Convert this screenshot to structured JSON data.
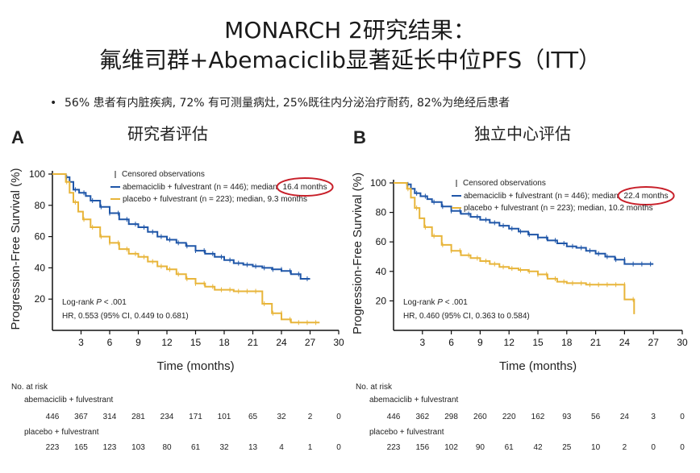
{
  "header": {
    "title_line1": "MONARCH 2研究结果：",
    "title_line2": "氟维司群+Abemaciclib显著延长中位PFS（ITT）",
    "bullet": "56% 患者有内脏疾病, 72% 有可测量病灶, 25%既往内分泌治疗耐药, 82%为绝经后患者"
  },
  "colors": {
    "abemaciclib": "#1f56a8",
    "placebo": "#e8b53a",
    "highlight": "#c8202a"
  },
  "chart_data": [
    {
      "type": "line",
      "panel": "A",
      "subtitle": "研究者评估",
      "xlabel": "Time (months)",
      "ylabel": "Progression-Free Survival (%)",
      "xlim": [
        0,
        30
      ],
      "ylim": [
        0,
        100
      ],
      "xticks": [
        "3",
        "6",
        "9",
        "12",
        "15",
        "18",
        "21",
        "24",
        "27",
        "30"
      ],
      "yticks": [
        "20",
        "40",
        "60",
        "80",
        "100"
      ],
      "legend": {
        "censored": "Censored observations",
        "abem": "abemaciclib + fulvestrant (n = 446); median,",
        "abem_median": "16.4 months",
        "placebo": "placebo + fulvestrant (n = 223); median, 9.3 months"
      },
      "stats": {
        "logrank_prefix": "Log-rank ",
        "logrank_p": "P",
        "logrank_suffix": " < .001",
        "hr": "HR, 0.553 (95% CI, 0.449 to 0.681)"
      },
      "series": [
        {
          "name": "abemaciclib + fulvestrant",
          "x": [
            0,
            1.0,
            1.4,
            1.8,
            2.2,
            2.8,
            3.5,
            4,
            5,
            6,
            7,
            8,
            9,
            10,
            11,
            12,
            13,
            14,
            15,
            16,
            17,
            18,
            19,
            20,
            21,
            22,
            23,
            24,
            25,
            26,
            27
          ],
          "y": [
            100,
            100,
            98,
            95,
            90,
            88,
            86,
            83,
            79,
            75,
            71,
            68,
            66,
            63,
            60,
            58,
            56,
            54,
            51,
            49,
            47,
            45,
            43,
            42,
            41,
            40,
            39,
            38,
            36,
            33,
            33
          ]
        },
        {
          "name": "placebo + fulvestrant",
          "x": [
            0,
            1.0,
            1.4,
            1.8,
            2.2,
            2.7,
            3.2,
            4,
            5,
            6,
            7,
            8,
            9,
            10,
            11,
            12,
            13,
            14,
            15,
            16,
            17,
            18,
            19,
            20,
            21,
            22,
            23,
            24,
            25,
            26,
            27,
            28
          ],
          "y": [
            100,
            100,
            95,
            88,
            82,
            76,
            71,
            66,
            60,
            56,
            52,
            49,
            47,
            44,
            41,
            39,
            36,
            33,
            30,
            28,
            26,
            26,
            25,
            25,
            25,
            17,
            11,
            7,
            5,
            5,
            5,
            5
          ]
        }
      ],
      "risk": {
        "label": "No. at risk",
        "abem_label": "abemaciclib + fulvestrant",
        "abem_values": [
          "446",
          "367",
          "314",
          "281",
          "234",
          "171",
          "101",
          "65",
          "32",
          "2",
          "0"
        ],
        "placebo_label": "placebo + fulvestrant",
        "placebo_values": [
          "223",
          "165",
          "123",
          "103",
          "80",
          "61",
          "32",
          "13",
          "4",
          "1",
          "0"
        ]
      }
    },
    {
      "type": "line",
      "panel": "B",
      "subtitle": "独立中心评估",
      "xlabel": "Time (months)",
      "ylabel": "Progression-Free Survival (%)",
      "xlim": [
        0,
        30
      ],
      "ylim": [
        0,
        100
      ],
      "xticks": [
        "3",
        "6",
        "9",
        "12",
        "15",
        "18",
        "21",
        "24",
        "27",
        "30"
      ],
      "yticks": [
        "20",
        "40",
        "60",
        "80",
        "100"
      ],
      "legend": {
        "censored": "Censored observations",
        "abem": "abemaciclib + fulvestrant (n = 446); median,",
        "abem_median": "22.4 months",
        "placebo": "placebo + fulvestrant (n = 223); median, 10.2 months"
      },
      "stats": {
        "logrank_prefix": "Log-rank ",
        "logrank_p": "P",
        "logrank_suffix": " < .001",
        "hr": "HR, 0.460 (95% CI, 0.363 to 0.584)"
      },
      "series": [
        {
          "name": "abemaciclib + fulvestrant",
          "x": [
            0,
            1.0,
            1.4,
            1.8,
            2.2,
            2.8,
            3.5,
            4,
            5,
            6,
            7,
            8,
            9,
            10,
            11,
            12,
            13,
            14,
            15,
            16,
            17,
            18,
            19,
            20,
            21,
            22,
            23,
            24,
            25,
            26,
            27
          ],
          "y": [
            100,
            100,
            99,
            96,
            93,
            91,
            89,
            87,
            84,
            81,
            79,
            77,
            75,
            73,
            71,
            69,
            67,
            65,
            63,
            61,
            59,
            57,
            56,
            54,
            52,
            50,
            48,
            45,
            45,
            45,
            45
          ]
        },
        {
          "name": "placebo + fulvestrant",
          "x": [
            0,
            1.0,
            1.4,
            1.8,
            2.2,
            2.7,
            3.2,
            4,
            5,
            6,
            7,
            8,
            9,
            10,
            11,
            12,
            13,
            14,
            15,
            16,
            17,
            18,
            19,
            20,
            21,
            22,
            23,
            24,
            24.5,
            25
          ],
          "y": [
            100,
            100,
            96,
            90,
            83,
            76,
            70,
            64,
            58,
            54,
            51,
            49,
            47,
            45,
            43,
            42,
            41,
            40,
            38,
            35,
            33,
            32,
            32,
            31,
            31,
            31,
            31,
            21,
            21,
            11
          ]
        }
      ],
      "risk": {
        "label": "No. at risk",
        "abem_label": "abemaciclib + fulvestrant",
        "abem_values": [
          "446",
          "362",
          "298",
          "260",
          "220",
          "162",
          "93",
          "56",
          "24",
          "3",
          "0"
        ],
        "placebo_label": "placebo + fulvestrant",
        "placebo_values": [
          "223",
          "156",
          "102",
          "90",
          "61",
          "42",
          "25",
          "10",
          "2",
          "0",
          "0"
        ]
      }
    }
  ]
}
